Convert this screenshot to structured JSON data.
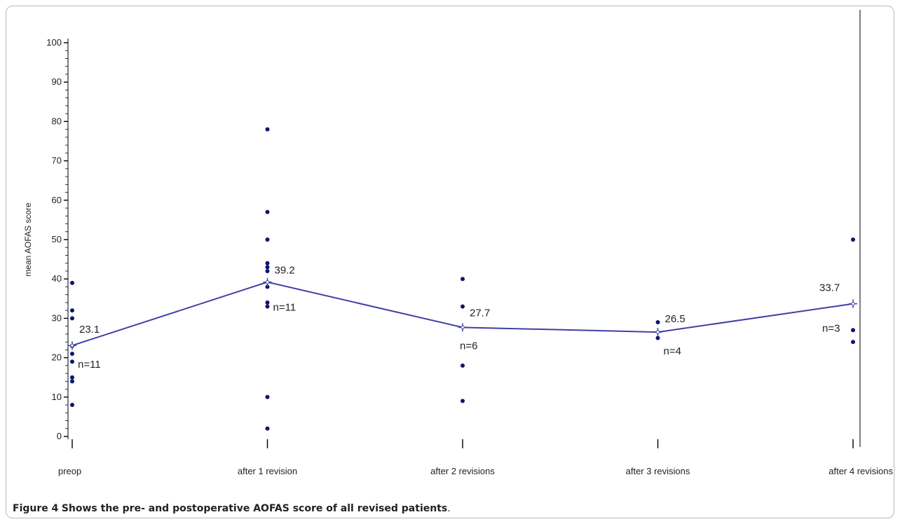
{
  "figure": {
    "caption_label": "Figure 4",
    "caption_text": "Shows the pre- and postoperative AOFAS score of all revised patients",
    "caption_end": "."
  },
  "chart_data": {
    "type": "scatter",
    "title": "",
    "xlabel": "",
    "ylabel": "mean AOFAS score",
    "ylim": [
      0,
      100
    ],
    "yticks": [
      0,
      10,
      20,
      30,
      40,
      50,
      60,
      70,
      80,
      90,
      100
    ],
    "categories": [
      "preop",
      "after 1 revision",
      "after 2 revisions",
      "after 3 revisions",
      "after 4 revisions"
    ],
    "individual_scores": [
      [
        39,
        32,
        30,
        23,
        21,
        19,
        15,
        14,
        8
      ],
      [
        78,
        57,
        50,
        44,
        43,
        42,
        38,
        34,
        33,
        10,
        2
      ],
      [
        40,
        33,
        18,
        9
      ],
      [
        29,
        25
      ],
      [
        50,
        27,
        24
      ]
    ],
    "means": [
      23.1,
      39.2,
      27.7,
      26.5,
      33.7
    ],
    "mean_labels": [
      "23.1",
      "39.2",
      "27.7",
      "26.5",
      "33.7"
    ],
    "n_labels": [
      "n=11",
      "n=11",
      "n=6",
      "n=4",
      "n=3"
    ],
    "colors": {
      "points": "#0d1570",
      "mean_line": "#3f3fa6",
      "axis": "#000000",
      "label": "#222222"
    }
  }
}
